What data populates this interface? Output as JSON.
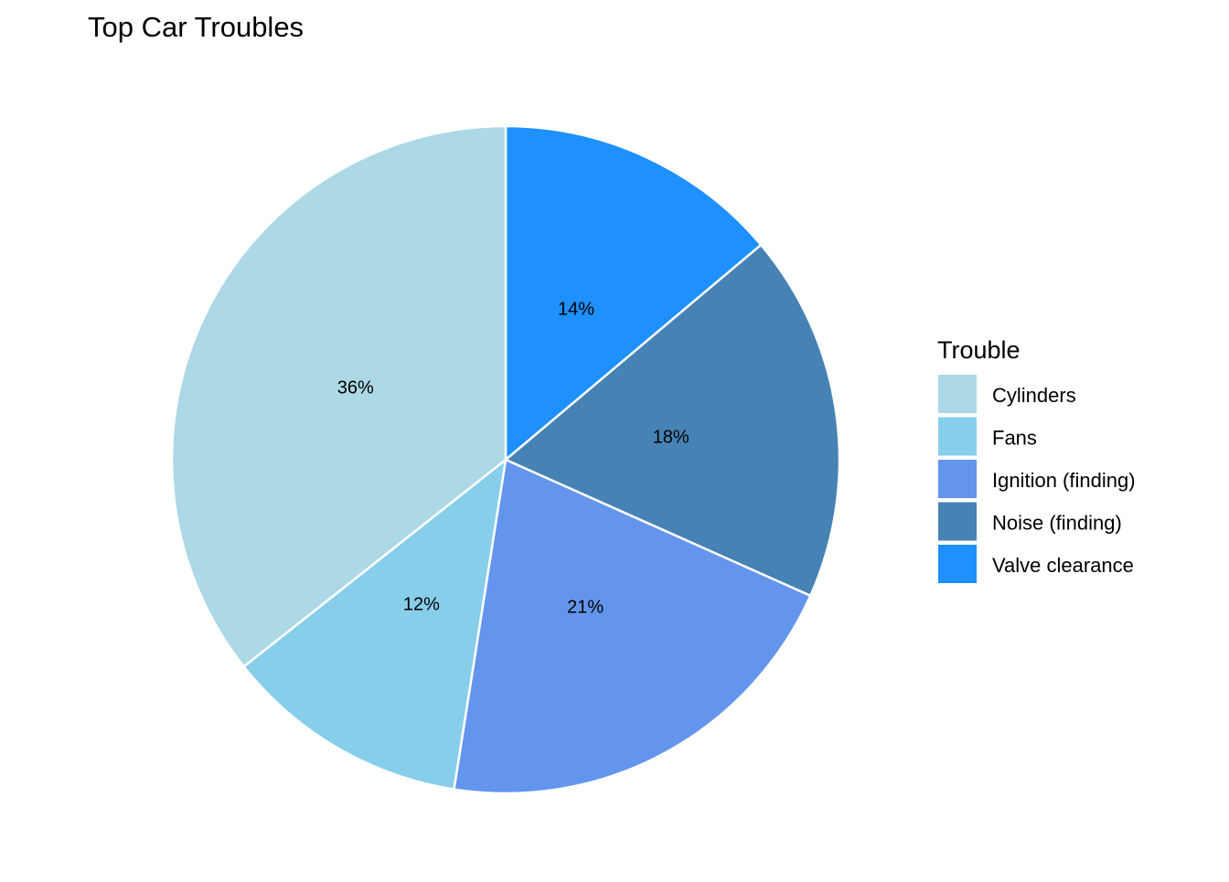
{
  "chart_data": {
    "type": "pie",
    "title": "Top Car Troubles",
    "legend": {
      "title": "Trouble",
      "position": "right"
    },
    "series": [
      {
        "slices": [
          {
            "label": "Valve clearance",
            "value": 14,
            "display": "14%",
            "color": "#1E90FF"
          },
          {
            "label": "Noise (finding)",
            "value": 18,
            "display": "18%",
            "color": "#4682B4"
          },
          {
            "label": "Ignition (finding)",
            "value": 21,
            "display": "21%",
            "color": "#6495ED"
          },
          {
            "label": "Fans",
            "value": 12,
            "display": "12%",
            "color": "#87CEEB"
          },
          {
            "label": "Cylinders",
            "value": 36,
            "display": "36%",
            "color": "#ADD8E6"
          }
        ]
      }
    ],
    "legend_order": [
      "Cylinders",
      "Fans",
      "Ignition (finding)",
      "Noise (finding)",
      "Valve clearance"
    ],
    "start_angle": "12 o'clock",
    "direction": "clockwise"
  }
}
